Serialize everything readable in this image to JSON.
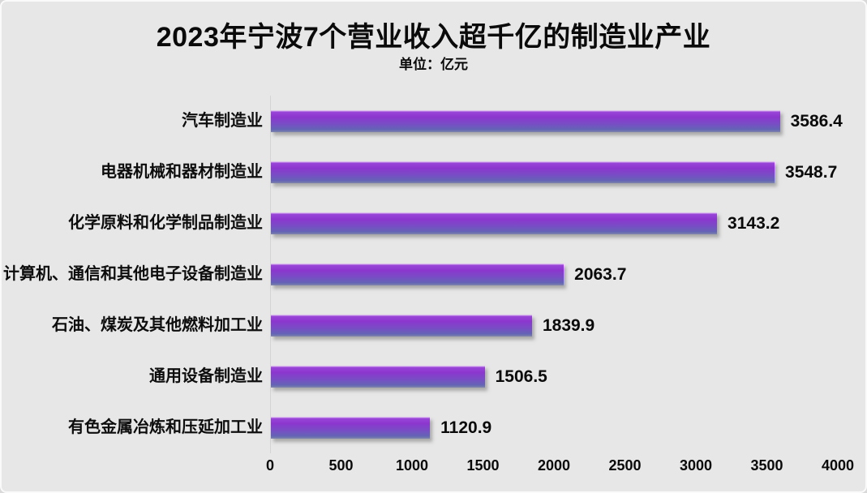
{
  "chart_data": {
    "type": "bar",
    "orientation": "horizontal",
    "title": "2023年宁波7个营业收入超千亿的制造业产业",
    "unit_label": "单位：亿元",
    "categories": [
      "汽车制造业",
      "电器机械和器材制造业",
      "化学原料和化学制品制造业",
      "计算机、通信和其他电子设备制造业",
      "石油、煤炭及其他燃料加工业",
      "通用设备制造业",
      "有色金属冶炼和压延加工业"
    ],
    "values": [
      3586.4,
      3548.7,
      3143.2,
      2063.7,
      1839.9,
      1506.5,
      1120.9
    ],
    "xlim": [
      0,
      4000
    ],
    "x_ticks": [
      0,
      500,
      1000,
      1500,
      2000,
      2500,
      3000,
      3500,
      4000
    ],
    "grid": false,
    "legend": null,
    "colors": {
      "background": "#e7e7e7",
      "bar_gradient_top": "#8c36cf",
      "bar_gradient_bottom": "#6464b5",
      "text": "#0a0a0a",
      "axis_line": "#d4d4d4"
    }
  }
}
